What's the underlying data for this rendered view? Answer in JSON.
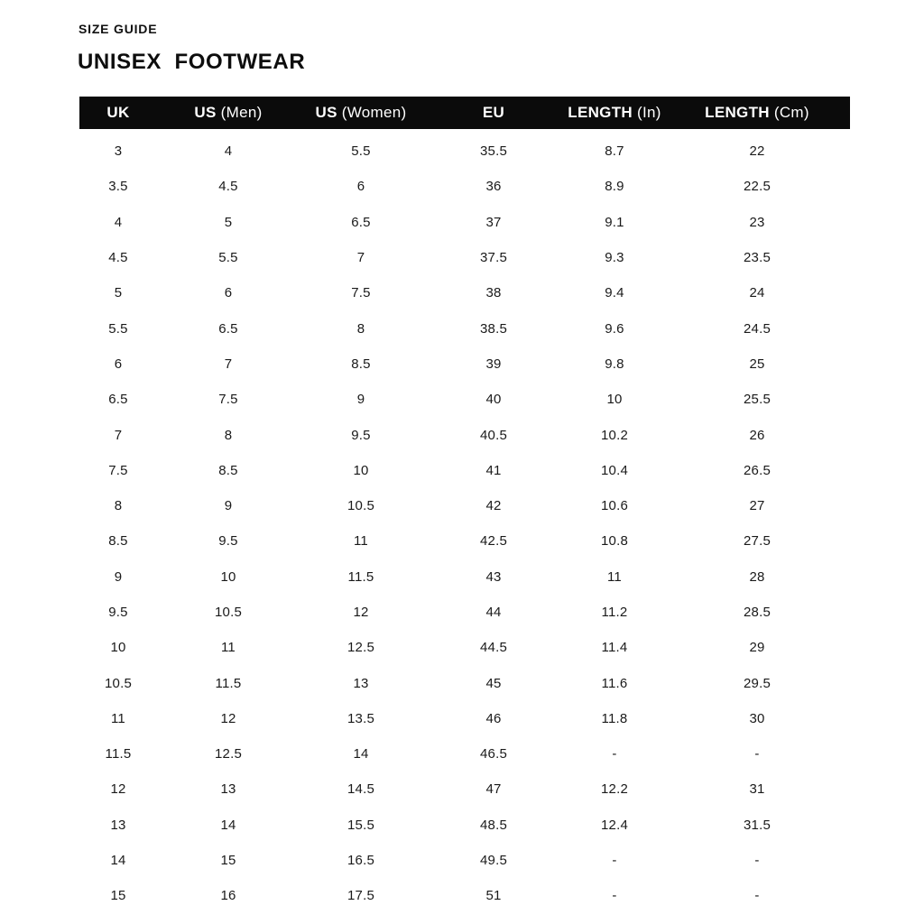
{
  "page": {
    "eyebrow": "SIZE GUIDE",
    "title": "UNISEX  FOOTWEAR"
  },
  "colors": {
    "header_bg": "#0b0b0b",
    "header_text": "#ffffff",
    "body_text": "#1a1a1a"
  },
  "table": {
    "header_parts": [
      {
        "bold": "UK",
        "regular": ""
      },
      {
        "bold": "US",
        "regular": "(Men)"
      },
      {
        "bold": "US",
        "regular": "(Women)"
      },
      {
        "bold": "EU",
        "regular": ""
      },
      {
        "bold": "LENGTH",
        "regular": "(In)"
      },
      {
        "bold": "LENGTH",
        "regular": "(Cm)"
      }
    ]
  },
  "chart_data": {
    "type": "table",
    "title": "UNISEX FOOTWEAR",
    "subtitle": "SIZE GUIDE",
    "columns": [
      "UK",
      "US (Men)",
      "US (Women)",
      "EU",
      "LENGTH (In)",
      "LENGTH (Cm)"
    ],
    "rows": [
      [
        "3",
        "4",
        "5.5",
        "35.5",
        "8.7",
        "22"
      ],
      [
        "3.5",
        "4.5",
        "6",
        "36",
        "8.9",
        "22.5"
      ],
      [
        "4",
        "5",
        "6.5",
        "37",
        "9.1",
        "23"
      ],
      [
        "4.5",
        "5.5",
        "7",
        "37.5",
        "9.3",
        "23.5"
      ],
      [
        "5",
        "6",
        "7.5",
        "38",
        "9.4",
        "24"
      ],
      [
        "5.5",
        "6.5",
        "8",
        "38.5",
        "9.6",
        "24.5"
      ],
      [
        "6",
        "7",
        "8.5",
        "39",
        "9.8",
        "25"
      ],
      [
        "6.5",
        "7.5",
        "9",
        "40",
        "10",
        "25.5"
      ],
      [
        "7",
        "8",
        "9.5",
        "40.5",
        "10.2",
        "26"
      ],
      [
        "7.5",
        "8.5",
        "10",
        "41",
        "10.4",
        "26.5"
      ],
      [
        "8",
        "9",
        "10.5",
        "42",
        "10.6",
        "27"
      ],
      [
        "8.5",
        "9.5",
        "11",
        "42.5",
        "10.8",
        "27.5"
      ],
      [
        "9",
        "10",
        "11.5",
        "43",
        "11",
        "28"
      ],
      [
        "9.5",
        "10.5",
        "12",
        "44",
        "11.2",
        "28.5"
      ],
      [
        "10",
        "11",
        "12.5",
        "44.5",
        "11.4",
        "29"
      ],
      [
        "10.5",
        "11.5",
        "13",
        "45",
        "11.6",
        "29.5"
      ],
      [
        "11",
        "12",
        "13.5",
        "46",
        "11.8",
        "30"
      ],
      [
        "11.5",
        "12.5",
        "14",
        "46.5",
        "-",
        "-"
      ],
      [
        "12",
        "13",
        "14.5",
        "47",
        "12.2",
        "31"
      ],
      [
        "13",
        "14",
        "15.5",
        "48.5",
        "12.4",
        "31.5"
      ],
      [
        "14",
        "15",
        "16.5",
        "49.5",
        "-",
        "-"
      ],
      [
        "15",
        "16",
        "17.5",
        "51",
        "-",
        "-"
      ]
    ]
  }
}
